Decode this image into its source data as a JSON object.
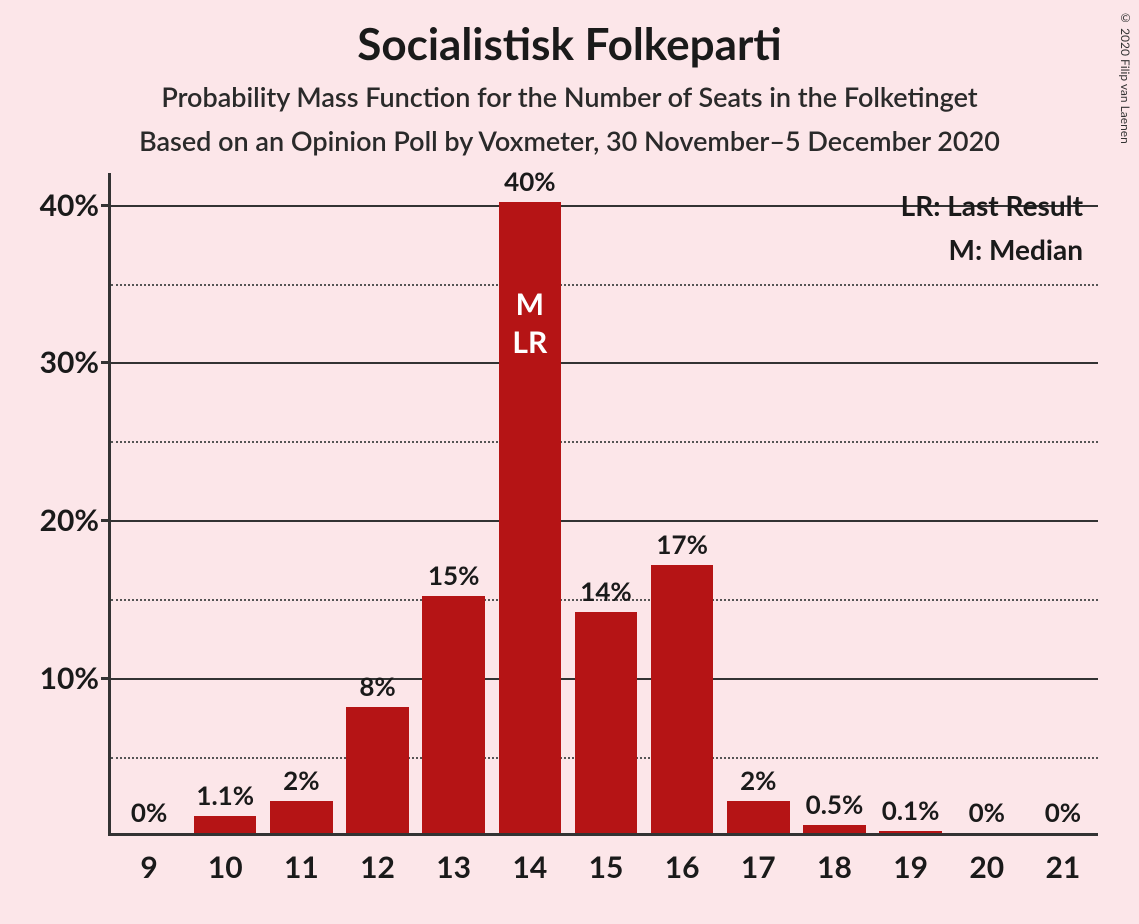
{
  "title": "Socialistisk Folkeparti",
  "subtitle1": "Probability Mass Function for the Number of Seats in the Folketinget",
  "subtitle2": "Based on an Opinion Poll by Voxmeter, 30 November–5 December 2020",
  "copyright": "© 2020 Filip van Laenen",
  "legend": {
    "lr": "LR: Last Result",
    "m": "M: Median"
  },
  "chart": {
    "type": "bar",
    "background_color": "#fce6e9",
    "bar_color": "#b51415",
    "axis_color": "#333333",
    "text_color": "#1a1a1a",
    "grid_major_color": "#333333",
    "grid_minor_color": "#555555",
    "ylim": [
      0,
      42
    ],
    "major_ticks": [
      10,
      20,
      30,
      40
    ],
    "minor_ticks": [
      5,
      15,
      25,
      35
    ],
    "y_tick_labels": [
      "10%",
      "20%",
      "30%",
      "40%"
    ],
    "categories": [
      "9",
      "10",
      "11",
      "12",
      "13",
      "14",
      "15",
      "16",
      "17",
      "18",
      "19",
      "20",
      "21"
    ],
    "values": [
      0,
      1.1,
      2,
      8,
      15,
      40,
      14,
      17,
      2,
      0.5,
      0.1,
      0,
      0
    ],
    "value_labels": [
      "0%",
      "1.1%",
      "2%",
      "8%",
      "15%",
      "40%",
      "14%",
      "17%",
      "2%",
      "0.5%",
      "0.1%",
      "0%",
      "0%"
    ],
    "median_index": 5,
    "lr_index": 5,
    "median_text": "M",
    "lr_text": "LR",
    "bar_width_ratio": 0.82
  }
}
